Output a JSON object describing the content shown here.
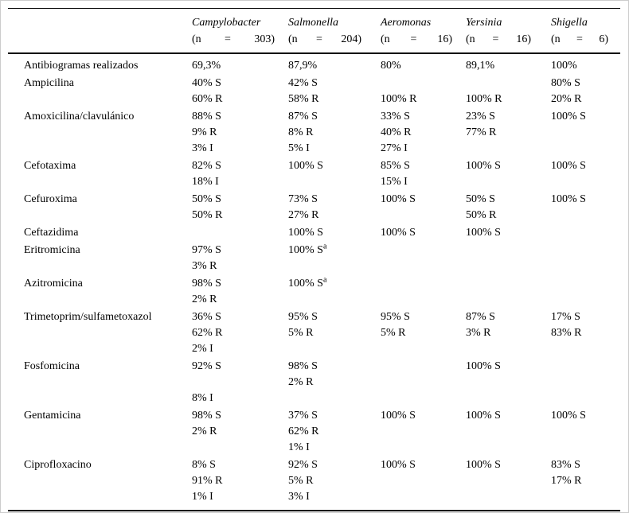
{
  "page": {
    "background": "#ffffff",
    "text_color": "#000000",
    "rule_color": "#000000"
  },
  "table": {
    "columns": [
      {
        "id": "campylobacter",
        "name": "Campylobacter",
        "n_open": "(n",
        "eq": "=",
        "n_close": "303)"
      },
      {
        "id": "salmonella",
        "name": "Salmonella",
        "n_open": "(n",
        "eq": "=",
        "n_close": "204)"
      },
      {
        "id": "aeromonas",
        "name": "Aeromonas",
        "n_open": "(n",
        "eq": "=",
        "n_close": "16)"
      },
      {
        "id": "yersinia",
        "name": "Yersinia",
        "n_open": "(n",
        "eq": "=",
        "n_close": "16)"
      },
      {
        "id": "shigella",
        "name": "Shigella",
        "n_open": "(n",
        "eq": "=",
        "n_close": "6)"
      }
    ],
    "rows": [
      {
        "label": "Antibiogramas realizados",
        "cells": [
          [
            "69,3%"
          ],
          [
            "87,9%"
          ],
          [
            "80%"
          ],
          [
            "89,1%"
          ],
          [
            "100%"
          ]
        ]
      },
      {
        "label": "Ampicilina",
        "cells": [
          [
            "40% S",
            "60% R"
          ],
          [
            "42% S",
            "58% R"
          ],
          [
            "",
            "100% R"
          ],
          [
            "",
            "100% R"
          ],
          [
            "80% S",
            "20% R"
          ]
        ]
      },
      {
        "label": "Amoxicilina/clavulánico",
        "cells": [
          [
            "88% S",
            "9% R",
            "3% I"
          ],
          [
            "87% S",
            "8% R",
            "5% I"
          ],
          [
            "33% S",
            "40% R",
            "27% I"
          ],
          [
            "23% S",
            "77% R"
          ],
          [
            "100% S"
          ]
        ]
      },
      {
        "label": "Cefotaxima",
        "cells": [
          [
            "82% S",
            "18% I"
          ],
          [
            "100% S"
          ],
          [
            "85% S",
            "15% I"
          ],
          [
            "100% S"
          ],
          [
            "100% S"
          ]
        ]
      },
      {
        "label": "Cefuroxima",
        "cells": [
          [
            "50% S",
            "50% R"
          ],
          [
            "73% S",
            "27% R"
          ],
          [
            "100% S"
          ],
          [
            "50% S",
            "50% R"
          ],
          [
            "100% S"
          ]
        ]
      },
      {
        "label": "Ceftazidima",
        "cells": [
          [],
          [
            "100% S"
          ],
          [
            "100% S"
          ],
          [
            "100% S"
          ],
          []
        ]
      },
      {
        "label": "Eritromicina",
        "cells": [
          [
            "97% S",
            "3% R"
          ],
          [
            "100% S^a"
          ],
          [],
          [],
          []
        ]
      },
      {
        "label": "Azitromicina",
        "cells": [
          [
            "98% S",
            "2% R"
          ],
          [
            "100% S^a"
          ],
          [],
          [],
          []
        ]
      },
      {
        "label": "Trimetoprim/sulfametoxazol",
        "cells": [
          [
            "36% S",
            "62% R",
            "2% I"
          ],
          [
            "95% S",
            "5% R"
          ],
          [
            "95% S",
            "5% R"
          ],
          [
            "87% S",
            "3% R"
          ],
          [
            "17% S",
            "83% R"
          ]
        ]
      },
      {
        "label": "Fosfomicina",
        "cells": [
          [
            "92% S",
            "",
            "8% I"
          ],
          [
            "98% S",
            "2% R"
          ],
          [],
          [
            "100% S"
          ],
          []
        ]
      },
      {
        "label": "Gentamicina",
        "cells": [
          [
            "98% S",
            "2% R"
          ],
          [
            "37% S",
            "62% R",
            "1% I"
          ],
          [
            "100% S"
          ],
          [
            "100% S"
          ],
          [
            "100% S"
          ]
        ]
      },
      {
        "label": "Ciprofloxacino",
        "cells": [
          [
            "8% S",
            "91% R",
            "1% I"
          ],
          [
            "92% S",
            "5% R",
            "3% I"
          ],
          [
            "100% S"
          ],
          [
            "100% S"
          ],
          [
            "83% S",
            "17% R"
          ]
        ]
      }
    ],
    "footnote_marker": "a"
  }
}
